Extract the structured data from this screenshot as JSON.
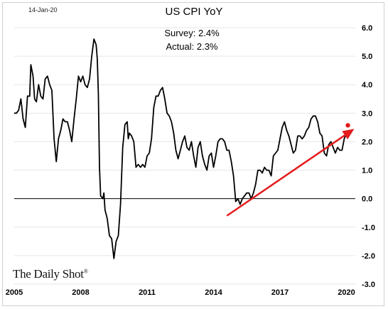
{
  "header": {
    "date_stamp": "14-Jan-20"
  },
  "annotations": {
    "survey": "Survey: 2.4%",
    "actual": "Actual:  2.3%"
  },
  "brand": {
    "name": "The Daily Shot",
    "mark": "®"
  },
  "colors": {
    "series": "#000000",
    "trend_arrow": "#e31b1b",
    "latest_point": "#e31b1b",
    "gridline": "#e6e6e6",
    "zero_line": "#000000"
  },
  "chart_data": {
    "type": "line",
    "title": "US CPI YoY",
    "xlabel": "",
    "ylabel": "",
    "xlim": [
      2005,
      2020.4
    ],
    "ylim": [
      -3.0,
      6.0
    ],
    "x_ticks": [
      2005,
      2008,
      2011,
      2014,
      2017,
      2020
    ],
    "x_tick_labels": [
      "2005",
      "2008",
      "2011",
      "2014",
      "2017",
      "2020"
    ],
    "y_ticks": [
      6,
      5,
      4,
      3,
      2,
      1,
      0,
      -1,
      -2,
      -3
    ],
    "y_tick_labels": [
      "6.0",
      "5.0",
      "4.0",
      "3.0",
      "2.0",
      "1.0",
      "0.0",
      "-1.0",
      "-2.0",
      "-3.0"
    ],
    "y_axis_side": "right",
    "grid": "horizontal",
    "series": [
      {
        "values": [
          [
            2005.0,
            3.0
          ],
          [
            2005.1,
            3.0
          ],
          [
            2005.2,
            3.1
          ],
          [
            2005.3,
            3.5
          ],
          [
            2005.4,
            2.8
          ],
          [
            2005.5,
            2.5
          ],
          [
            2005.6,
            3.6
          ],
          [
            2005.7,
            3.6
          ],
          [
            2005.75,
            4.7
          ],
          [
            2005.85,
            4.3
          ],
          [
            2005.92,
            3.5
          ],
          [
            2006.0,
            3.4
          ],
          [
            2006.1,
            4.0
          ],
          [
            2006.2,
            3.6
          ],
          [
            2006.3,
            3.5
          ],
          [
            2006.4,
            4.2
          ],
          [
            2006.5,
            4.3
          ],
          [
            2006.6,
            4.0
          ],
          [
            2006.7,
            3.8
          ],
          [
            2006.8,
            2.1
          ],
          [
            2006.9,
            1.3
          ],
          [
            2007.0,
            2.1
          ],
          [
            2007.1,
            2.4
          ],
          [
            2007.2,
            2.8
          ],
          [
            2007.3,
            2.7
          ],
          [
            2007.4,
            2.7
          ],
          [
            2007.5,
            2.4
          ],
          [
            2007.6,
            2.0
          ],
          [
            2007.7,
            2.8
          ],
          [
            2007.8,
            3.5
          ],
          [
            2007.9,
            4.3
          ],
          [
            2008.0,
            4.1
          ],
          [
            2008.1,
            4.3
          ],
          [
            2008.2,
            4.0
          ],
          [
            2008.3,
            3.9
          ],
          [
            2008.4,
            4.2
          ],
          [
            2008.5,
            5.0
          ],
          [
            2008.6,
            5.6
          ],
          [
            2008.7,
            5.4
          ],
          [
            2008.75,
            4.9
          ],
          [
            2008.8,
            3.7
          ],
          [
            2008.85,
            1.1
          ],
          [
            2008.9,
            0.1
          ],
          [
            2009.0,
            0.0
          ],
          [
            2009.05,
            0.2
          ],
          [
            2009.1,
            -0.4
          ],
          [
            2009.2,
            -0.7
          ],
          [
            2009.3,
            -1.3
          ],
          [
            2009.4,
            -1.4
          ],
          [
            2009.5,
            -2.1
          ],
          [
            2009.6,
            -1.5
          ],
          [
            2009.7,
            -1.3
          ],
          [
            2009.8,
            -0.2
          ],
          [
            2009.9,
            1.8
          ],
          [
            2010.0,
            2.6
          ],
          [
            2010.1,
            2.7
          ],
          [
            2010.15,
            2.1
          ],
          [
            2010.2,
            2.3
          ],
          [
            2010.3,
            2.2
          ],
          [
            2010.4,
            2.0
          ],
          [
            2010.5,
            1.1
          ],
          [
            2010.6,
            1.2
          ],
          [
            2010.7,
            1.1
          ],
          [
            2010.8,
            1.2
          ],
          [
            2010.9,
            1.1
          ],
          [
            2011.0,
            1.5
          ],
          [
            2011.1,
            1.6
          ],
          [
            2011.2,
            2.1
          ],
          [
            2011.3,
            3.2
          ],
          [
            2011.4,
            3.6
          ],
          [
            2011.5,
            3.6
          ],
          [
            2011.6,
            3.8
          ],
          [
            2011.7,
            3.9
          ],
          [
            2011.8,
            3.5
          ],
          [
            2011.9,
            3.0
          ],
          [
            2012.0,
            2.9
          ],
          [
            2012.1,
            2.7
          ],
          [
            2012.2,
            2.3
          ],
          [
            2012.3,
            1.7
          ],
          [
            2012.4,
            1.4
          ],
          [
            2012.5,
            1.7
          ],
          [
            2012.6,
            2.0
          ],
          [
            2012.7,
            2.2
          ],
          [
            2012.8,
            1.8
          ],
          [
            2012.9,
            1.7
          ],
          [
            2013.0,
            2.0
          ],
          [
            2013.1,
            1.5
          ],
          [
            2013.2,
            1.1
          ],
          [
            2013.3,
            1.8
          ],
          [
            2013.4,
            2.0
          ],
          [
            2013.5,
            1.5
          ],
          [
            2013.6,
            1.2
          ],
          [
            2013.7,
            1.0
          ],
          [
            2013.8,
            1.5
          ],
          [
            2013.9,
            1.6
          ],
          [
            2014.0,
            1.1
          ],
          [
            2014.1,
            1.5
          ],
          [
            2014.2,
            2.0
          ],
          [
            2014.3,
            2.1
          ],
          [
            2014.4,
            2.1
          ],
          [
            2014.5,
            2.0
          ],
          [
            2014.6,
            1.7
          ],
          [
            2014.7,
            1.7
          ],
          [
            2014.8,
            1.3
          ],
          [
            2014.9,
            0.8
          ],
          [
            2015.0,
            -0.1
          ],
          [
            2015.1,
            0.0
          ],
          [
            2015.2,
            -0.2
          ],
          [
            2015.3,
            0.0
          ],
          [
            2015.4,
            0.1
          ],
          [
            2015.5,
            0.2
          ],
          [
            2015.6,
            0.2
          ],
          [
            2015.7,
            0.0
          ],
          [
            2015.8,
            0.2
          ],
          [
            2015.9,
            0.5
          ],
          [
            2016.0,
            1.0
          ],
          [
            2016.1,
            1.0
          ],
          [
            2016.2,
            0.9
          ],
          [
            2016.3,
            1.1
          ],
          [
            2016.4,
            1.0
          ],
          [
            2016.5,
            1.0
          ],
          [
            2016.6,
            0.8
          ],
          [
            2016.7,
            1.5
          ],
          [
            2016.8,
            1.6
          ],
          [
            2016.9,
            1.7
          ],
          [
            2017.0,
            2.1
          ],
          [
            2017.1,
            2.5
          ],
          [
            2017.2,
            2.7
          ],
          [
            2017.3,
            2.4
          ],
          [
            2017.4,
            2.2
          ],
          [
            2017.5,
            1.9
          ],
          [
            2017.6,
            1.6
          ],
          [
            2017.7,
            1.7
          ],
          [
            2017.8,
            2.2
          ],
          [
            2017.9,
            2.2
          ],
          [
            2018.0,
            2.1
          ],
          [
            2018.1,
            2.2
          ],
          [
            2018.2,
            2.4
          ],
          [
            2018.3,
            2.5
          ],
          [
            2018.4,
            2.8
          ],
          [
            2018.5,
            2.9
          ],
          [
            2018.6,
            2.9
          ],
          [
            2018.7,
            2.7
          ],
          [
            2018.8,
            2.3
          ],
          [
            2018.9,
            2.2
          ],
          [
            2019.0,
            1.6
          ],
          [
            2019.1,
            1.5
          ],
          [
            2019.2,
            1.9
          ],
          [
            2019.3,
            2.0
          ],
          [
            2019.4,
            1.8
          ],
          [
            2019.5,
            1.6
          ],
          [
            2019.6,
            1.8
          ],
          [
            2019.7,
            1.7
          ],
          [
            2019.8,
            1.7
          ],
          [
            2019.9,
            2.1
          ],
          [
            2020.0,
            2.3
          ]
        ]
      }
    ],
    "zero_line": true,
    "trend_arrow": {
      "from": [
        2014.6,
        -0.6
      ],
      "to": [
        2020.35,
        2.45
      ]
    },
    "latest_point": [
      2020.0,
      2.3
    ]
  }
}
